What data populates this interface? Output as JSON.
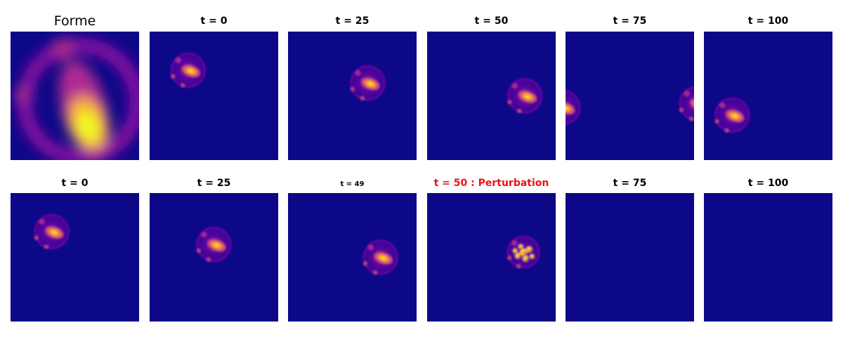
{
  "colors": {
    "background": "#0d0887",
    "title": "#000000",
    "alert": "#ee1111"
  },
  "chart_data": [
    {
      "type": "heatmap",
      "title": "Forme",
      "colormap": "plasma",
      "content": "pattern"
    },
    {
      "type": "heatmap",
      "colormap": "plasma",
      "row": "top",
      "panels": [
        {
          "title": "t = 0",
          "blobs": [
            {
              "x": 0.3,
              "y": 0.3,
              "s": 0.28
            }
          ]
        },
        {
          "title": "t = 25",
          "blobs": [
            {
              "x": 0.62,
              "y": 0.4,
              "s": 0.28
            }
          ]
        },
        {
          "title": "t = 50",
          "blobs": [
            {
              "x": 0.76,
              "y": 0.5,
              "s": 0.28
            }
          ]
        },
        {
          "title": "t = 75",
          "blobs": [
            {
              "x": -0.02,
              "y": 0.59,
              "s": 0.28
            },
            {
              "x": 1.02,
              "y": 0.56,
              "s": 0.28
            }
          ]
        },
        {
          "title": "t = 100",
          "blobs": [
            {
              "x": 0.22,
              "y": 0.65,
              "s": 0.28
            }
          ]
        }
      ]
    },
    {
      "type": "heatmap",
      "colormap": "plasma",
      "row": "bottom",
      "panels": [
        {
          "title": "t = 0",
          "blobs": [
            {
              "x": 0.32,
              "y": 0.3,
              "s": 0.28
            }
          ]
        },
        {
          "title": "t = 25",
          "blobs": [
            {
              "x": 0.5,
              "y": 0.4,
              "s": 0.28
            }
          ]
        },
        {
          "title": "t = 49",
          "small": true,
          "blobs": [
            {
              "x": 0.72,
              "y": 0.5,
              "s": 0.28
            }
          ]
        },
        {
          "title": "t = 50 : Perturbation",
          "alert": true,
          "perturbed": true,
          "blobs": [
            {
              "x": 0.75,
              "y": 0.46,
              "s": 0.26
            }
          ]
        },
        {
          "title": "t = 75",
          "blobs": []
        },
        {
          "title": "t = 100",
          "blobs": []
        }
      ]
    }
  ]
}
